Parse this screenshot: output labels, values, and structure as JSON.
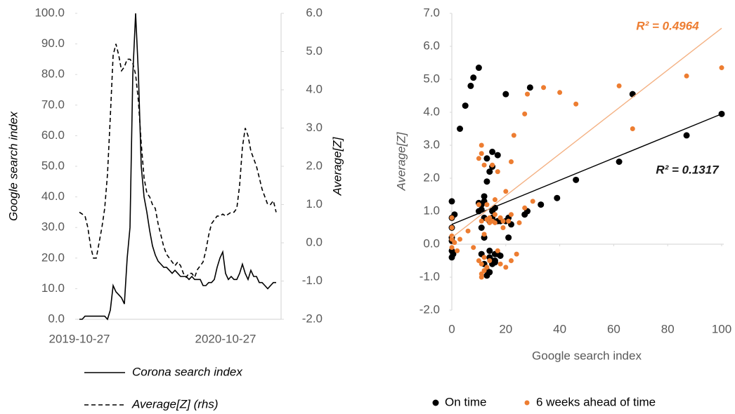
{
  "chart_data": [
    {
      "type": "line",
      "ylabel": "Google search index",
      "y2label": "Average[Z]",
      "categories": [
        "2019-10-27",
        null,
        null,
        null,
        null,
        null,
        null,
        null,
        null,
        null,
        null,
        null,
        null,
        null,
        null,
        null,
        null,
        null,
        null,
        null,
        null,
        null,
        null,
        null,
        null,
        null,
        null,
        null,
        null,
        null,
        null,
        null,
        null,
        null,
        null,
        null,
        null,
        null,
        null,
        null,
        null,
        null,
        null,
        null,
        null,
        null,
        null,
        null,
        null,
        null,
        null,
        null,
        "2020-10-27",
        null,
        null,
        null,
        null,
        null,
        null,
        null,
        null,
        null,
        null,
        null,
        null,
        null,
        null,
        null,
        null,
        null,
        null
      ],
      "series": [
        {
          "name": "Corona search index",
          "color": "#000000",
          "dashed": false,
          "values": [
            0,
            0,
            1,
            1,
            1,
            1,
            1,
            1,
            1,
            1,
            0,
            3,
            11,
            9,
            8,
            7,
            5,
            20,
            30,
            80,
            100,
            80,
            50,
            40,
            35,
            29,
            24,
            21,
            19,
            18,
            17,
            17,
            16,
            15,
            16,
            15,
            14,
            14,
            14,
            13,
            14,
            13,
            13,
            13,
            11,
            11,
            12,
            12,
            13,
            17,
            20,
            22,
            15,
            13,
            14,
            13,
            13,
            15,
            18,
            15,
            13,
            16,
            14,
            14,
            12,
            12,
            11,
            10,
            11,
            12,
            12
          ]
        },
        {
          "name": "Average[Z] (rhs)",
          "color": "#000000",
          "dashed": true,
          "axis": "y2",
          "values": [
            0.8,
            0.75,
            0.7,
            0.4,
            -0.1,
            -0.4,
            -0.4,
            0.0,
            0.4,
            0.9,
            1.8,
            3.3,
            4.9,
            5.2,
            4.9,
            4.5,
            4.6,
            4.8,
            4.8,
            4.7,
            4.4,
            3.7,
            2.6,
            1.7,
            1.3,
            1.2,
            1.0,
            0.9,
            0.5,
            0.2,
            -0.1,
            -0.3,
            -0.4,
            -0.5,
            -0.6,
            -0.5,
            -0.6,
            -0.8,
            -0.9,
            -0.8,
            -0.8,
            -0.9,
            -0.7,
            -0.6,
            -0.5,
            -0.2,
            0.2,
            0.5,
            0.6,
            0.7,
            0.7,
            0.75,
            0.7,
            0.75,
            0.8,
            0.8,
            0.9,
            1.5,
            2.5,
            3.0,
            2.8,
            2.4,
            2.2,
            2.0,
            1.7,
            1.4,
            1.2,
            1.0,
            1.0,
            1.1,
            0.8
          ]
        }
      ],
      "ylim": [
        0,
        100
      ],
      "yticks": [
        {
          "value": 0,
          "label": "0.0"
        },
        {
          "value": 10,
          "label": "10.0"
        },
        {
          "value": 20,
          "label": "20.0"
        },
        {
          "value": 30,
          "label": "30.0"
        },
        {
          "value": 40,
          "label": "40.0"
        },
        {
          "value": 50,
          "label": "50.0"
        },
        {
          "value": 60,
          "label": "60.0"
        },
        {
          "value": 70,
          "label": "70.0"
        },
        {
          "value": 80,
          "label": "80.0"
        },
        {
          "value": 90,
          "label": "90.0"
        },
        {
          "value": 100,
          "label": "100.0"
        }
      ],
      "y2lim": [
        -2,
        6
      ],
      "y2ticks": [
        {
          "value": -2,
          "label": "-2.0"
        },
        {
          "value": -1,
          "label": "-1.0"
        },
        {
          "value": 0,
          "label": "0.0"
        },
        {
          "value": 1,
          "label": "1.0"
        },
        {
          "value": 2,
          "label": "2.0"
        },
        {
          "value": 3,
          "label": "3.0"
        },
        {
          "value": 4,
          "label": "4.0"
        },
        {
          "value": 5,
          "label": "5.0"
        },
        {
          "value": 6,
          "label": "6.0"
        }
      ],
      "legend": "bottom"
    },
    {
      "type": "scatter",
      "xlabel": "Google search index",
      "ylabel": "Average[Z]",
      "xlim": [
        0,
        100
      ],
      "xticks": [
        0,
        20,
        40,
        60,
        80,
        100
      ],
      "ylim": [
        -2,
        7
      ],
      "yticks": [
        {
          "value": -2,
          "label": "-2.0"
        },
        {
          "value": -1,
          "label": "-1.0"
        },
        {
          "value": 0,
          "label": "0.0"
        },
        {
          "value": 1,
          "label": "1.0"
        },
        {
          "value": 2,
          "label": "2.0"
        },
        {
          "value": 3,
          "label": "3.0"
        },
        {
          "value": 4,
          "label": "4.0"
        },
        {
          "value": 5,
          "label": "5.0"
        },
        {
          "value": 6,
          "label": "6.0"
        },
        {
          "value": 7,
          "label": "7.0"
        }
      ],
      "series": [
        {
          "name": "On time",
          "color": "#000000",
          "x": [
            0,
            0,
            0,
            0,
            0,
            0,
            0,
            0.5,
            1,
            3,
            5,
            7,
            8,
            10,
            10,
            11,
            11,
            12,
            12,
            11,
            12,
            11,
            12,
            13,
            13,
            14,
            14,
            15,
            15,
            16,
            16,
            13,
            14,
            13,
            15,
            15,
            14,
            15,
            16,
            17,
            18,
            17,
            20,
            20,
            21,
            21,
            22,
            17,
            18,
            27,
            28,
            29,
            33,
            39,
            46,
            62,
            67,
            87,
            100,
            10,
            12,
            15,
            16,
            14
          ],
          "y": [
            1.3,
            0.8,
            0.5,
            0.2,
            0.1,
            -0.2,
            -0.4,
            -0.3,
            0.9,
            3.5,
            4.2,
            4.8,
            5.05,
            5.35,
            1.25,
            1.05,
            1.2,
            1.45,
            0.8,
            0.5,
            0.2,
            -0.3,
            -0.6,
            -0.8,
            -0.95,
            -0.85,
            -0.4,
            -0.5,
            -0.6,
            -0.5,
            -0.3,
            2.6,
            2.2,
            1.9,
            2.35,
            2.8,
            0.7,
            0.8,
            1.1,
            0.7,
            0.7,
            2.7,
            4.55,
            0.7,
            0.2,
            0.8,
            0.6,
            -0.3,
            -0.35,
            0.9,
            1.0,
            4.75,
            1.2,
            1.4,
            1.95,
            2.5,
            4.55,
            3.3,
            3.95,
            1.0,
            1.3,
            1.0,
            -0.55,
            -0.2
          ],
          "trendline": {
            "color": "#000000",
            "x": [
              0,
              100
            ],
            "y": [
              0.6,
              3.95
            ],
            "label": "R² = 0.1317"
          }
        },
        {
          "name": "6 weeks ahead of time",
          "color": "#ed7d31",
          "x": [
            0,
            0,
            0,
            0,
            0,
            2,
            1,
            3,
            6,
            8,
            10,
            11,
            11,
            12,
            10,
            11,
            11,
            11,
            12,
            13,
            12,
            14,
            10,
            11,
            12,
            13,
            14,
            15,
            16,
            13,
            14,
            16,
            16,
            18,
            19,
            19,
            17,
            20,
            22,
            22,
            21,
            23,
            20,
            22,
            24,
            25,
            27,
            27,
            28,
            30,
            34,
            40,
            46,
            62,
            67,
            87,
            100,
            15,
            17,
            18
          ],
          "y": [
            0.8,
            0.5,
            0.25,
            0.15,
            -0.1,
            -0.2,
            0.05,
            0.15,
            0.4,
            -0.1,
            2.6,
            3.0,
            2.75,
            2.4,
            1.2,
            -0.6,
            -0.9,
            -1.0,
            -0.8,
            -0.7,
            -0.4,
            -0.5,
            -0.5,
            0.7,
            0.3,
            0.75,
            0.65,
            0.7,
            0.9,
            1.2,
            0.8,
            1.35,
            0.65,
            0.8,
            0.7,
            0.5,
            2.2,
            1.6,
            2.5,
            0.9,
            0.7,
            3.3,
            -0.7,
            -0.5,
            -0.3,
            0.65,
            1.1,
            3.95,
            4.55,
            1.3,
            4.75,
            4.6,
            4.25,
            4.8,
            3.5,
            5.1,
            5.35,
            2.4,
            -0.2,
            -0.6
          ],
          "trendline": {
            "color": "#f4b183",
            "x": [
              0,
              100
            ],
            "y": [
              0.2,
              6.55
            ],
            "label": "R² = 0.4964"
          }
        }
      ],
      "legend": "bottom"
    }
  ]
}
